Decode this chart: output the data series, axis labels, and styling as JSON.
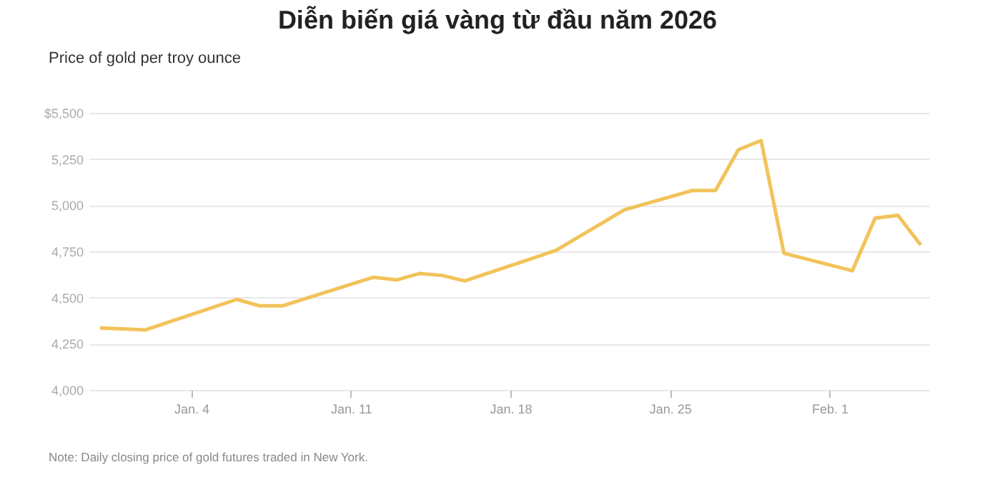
{
  "chart_data": {
    "type": "line",
    "title": "Diễn biến giá vàng từ đầu năm 2026",
    "ylabel": "Price of gold per troy ounce",
    "annotations": [
      "Note: Daily closing price of gold futures traded in New York."
    ],
    "x": [
      "2025-12-31",
      "2026-01-02",
      "2026-01-06",
      "2026-01-07",
      "2026-01-08",
      "2026-01-12",
      "2026-01-13",
      "2026-01-14",
      "2026-01-15",
      "2026-01-16",
      "2026-01-20",
      "2026-01-23",
      "2026-01-26",
      "2026-01-27",
      "2026-01-28",
      "2026-01-29",
      "2026-01-30",
      "2026-02-02",
      "2026-02-03",
      "2026-02-04",
      "2026-02-05"
    ],
    "series": [
      {
        "color": "#f2c35b",
        "values": [
          4335,
          4325,
          4490,
          4455,
          4455,
          4610,
          4595,
          4630,
          4620,
          4590,
          4755,
          4975,
          5080,
          5080,
          5300,
          5350,
          4740,
          4645,
          4930,
          4945,
          4785
        ]
      }
    ],
    "xlim": [
      "2025-12-30T12:00",
      "2026-02-05T09:00"
    ],
    "xticks": [
      {
        "value": "2026-01-04",
        "label": "Jan. 4"
      },
      {
        "value": "2026-01-11",
        "label": "Jan. 11"
      },
      {
        "value": "2026-01-18",
        "label": "Jan. 18"
      },
      {
        "value": "2026-01-25",
        "label": "Jan. 25"
      },
      {
        "value": "2026-02-01",
        "label": "Feb. 1"
      }
    ],
    "ylim": [
      4000,
      5500
    ],
    "yticks": [
      {
        "value": 4000,
        "label": "4,000"
      },
      {
        "value": 4250,
        "label": "4,250"
      },
      {
        "value": 4500,
        "label": "4,500"
      },
      {
        "value": 4750,
        "label": "4,750"
      },
      {
        "value": 5000,
        "label": "5,000"
      },
      {
        "value": 5250,
        "label": "5,250"
      },
      {
        "value": 5500,
        "label": "$5,500"
      }
    ],
    "grid": "y",
    "marker": "none",
    "line_style": "solid"
  }
}
